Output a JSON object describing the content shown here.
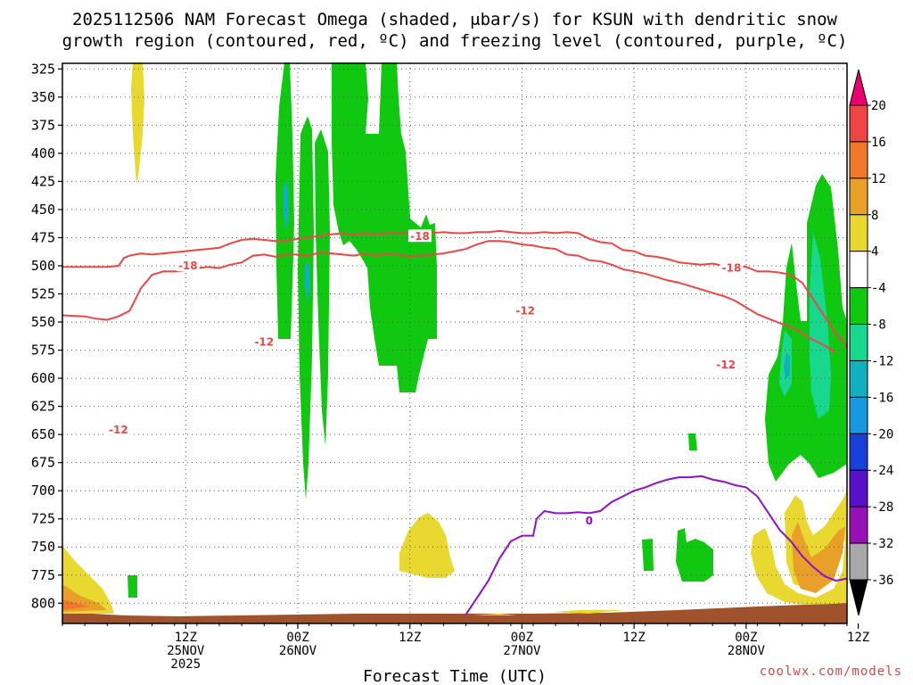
{
  "chart_data": {
    "type": "contour",
    "title_line1": "2025112506 NAM Forecast Omega (shaded, μbar/s) for KSUN with dendritic snow",
    "title_line2": "growth region (contoured, red, ºC) and freezing level (contoured, purple, ºC)",
    "xlabel": "Forecast Time (UTC)",
    "credit": "coolwx.com/models",
    "y_axis": {
      "ticks": [
        325,
        350,
        375,
        400,
        425,
        450,
        475,
        500,
        525,
        550,
        575,
        600,
        625,
        650,
        675,
        700,
        725,
        750,
        775,
        800
      ],
      "range": [
        320,
        818
      ],
      "inverted": true,
      "grid": true
    },
    "x_axis": {
      "range_hours": [
        -5,
        65
      ],
      "ticks": [
        {
          "hour": 6,
          "lines": [
            "12Z",
            "25NOV",
            "2025"
          ]
        },
        {
          "hour": 16,
          "lines": [
            "00Z",
            "26NOV"
          ]
        },
        {
          "hour": 26,
          "lines": [
            "12Z"
          ]
        },
        {
          "hour": 36,
          "lines": [
            "00Z",
            "27NOV"
          ]
        },
        {
          "hour": 46,
          "lines": [
            "12Z"
          ]
        },
        {
          "hour": 56,
          "lines": [
            "00Z",
            "28NOV"
          ]
        },
        {
          "hour": 66,
          "lines": [
            "12Z"
          ]
        }
      ],
      "grid": true
    },
    "colorbar": {
      "labels": [
        "20",
        "16",
        "12",
        "8",
        "4",
        "-4",
        "-8",
        "-12",
        "-16",
        "-20",
        "-24",
        "-28",
        "-32",
        "-36"
      ],
      "colors": [
        "#e8006e",
        "#f04545",
        "#f07828",
        "#e8a028",
        "#e8d830",
        "#ffffff",
        "#10c810",
        "#18d890",
        "#10b0c0",
        "#1898e0",
        "#1840d8",
        "#5810c8",
        "#9810b8",
        "#a8a8a8",
        "#000000"
      ]
    },
    "series": [
      {
        "name": "-18",
        "color": "#f04545",
        "points": [
          [
            -5,
            501
          ],
          [
            -3,
            501
          ],
          [
            -2,
            501
          ],
          [
            -1,
            501
          ],
          [
            0,
            500
          ],
          [
            0.5,
            493
          ],
          [
            1,
            491
          ],
          [
            2,
            489
          ],
          [
            3,
            490
          ],
          [
            4,
            489
          ],
          [
            5,
            488
          ],
          [
            6,
            487
          ],
          [
            7,
            486
          ],
          [
            8,
            485
          ],
          [
            9,
            484
          ],
          [
            10,
            480
          ],
          [
            11,
            477
          ],
          [
            12,
            476
          ],
          [
            13,
            477
          ],
          [
            14,
            478
          ],
          [
            15,
            478
          ],
          [
            16,
            476
          ],
          [
            17,
            475
          ],
          [
            18,
            473
          ],
          [
            19,
            472
          ],
          [
            20,
            471
          ],
          [
            21,
            472
          ],
          [
            22,
            471
          ],
          [
            23,
            472
          ],
          [
            24,
            471
          ],
          [
            25,
            471
          ],
          [
            26,
            471
          ],
          [
            27,
            470
          ],
          [
            28,
            471
          ],
          [
            29,
            470
          ],
          [
            30,
            471
          ],
          [
            31,
            471
          ],
          [
            32,
            470
          ],
          [
            33,
            470
          ],
          [
            34,
            469
          ],
          [
            35,
            470
          ],
          [
            36,
            471
          ],
          [
            37,
            471
          ],
          [
            38,
            470
          ],
          [
            39,
            471
          ],
          [
            40,
            470
          ],
          [
            41,
            471
          ],
          [
            42,
            476
          ],
          [
            43,
            479
          ],
          [
            44,
            480
          ],
          [
            45,
            486
          ],
          [
            46,
            487
          ],
          [
            47,
            491
          ],
          [
            48,
            492
          ],
          [
            49,
            494
          ],
          [
            50,
            497
          ],
          [
            51,
            498
          ],
          [
            52,
            499
          ],
          [
            53,
            498
          ],
          [
            54,
            500
          ],
          [
            55,
            500
          ],
          [
            56,
            501
          ],
          [
            57,
            505
          ],
          [
            58,
            505
          ],
          [
            59,
            506
          ],
          [
            60,
            508
          ],
          [
            61,
            515
          ],
          [
            62,
            530
          ],
          [
            63,
            545
          ],
          [
            64,
            560
          ],
          [
            65,
            572
          ]
        ]
      },
      {
        "name": "-12",
        "color": "#f04545",
        "points": [
          [
            -5,
            544
          ],
          [
            -3,
            545
          ],
          [
            -2,
            547
          ],
          [
            -1,
            548
          ],
          [
            0,
            545
          ],
          [
            1,
            540
          ],
          [
            2,
            520
          ],
          [
            3,
            508
          ],
          [
            4,
            505
          ],
          [
            5,
            505
          ],
          [
            6,
            504
          ],
          [
            7,
            502
          ],
          [
            8,
            501
          ],
          [
            9,
            502
          ],
          [
            10,
            499
          ],
          [
            11,
            497
          ],
          [
            12,
            491
          ],
          [
            13,
            490
          ],
          [
            14,
            492
          ],
          [
            15,
            490
          ],
          [
            16,
            490
          ],
          [
            17,
            491
          ],
          [
            18,
            488
          ],
          [
            19,
            489
          ],
          [
            20,
            490
          ],
          [
            21,
            491
          ],
          [
            22,
            489
          ],
          [
            23,
            491
          ],
          [
            24,
            489
          ],
          [
            25,
            490
          ],
          [
            26,
            492
          ],
          [
            27,
            491
          ],
          [
            28,
            490
          ],
          [
            29,
            489
          ],
          [
            30,
            487
          ],
          [
            31,
            485
          ],
          [
            32,
            481
          ],
          [
            33,
            478
          ],
          [
            34,
            478
          ],
          [
            35,
            479
          ],
          [
            36,
            481
          ],
          [
            37,
            482
          ],
          [
            38,
            484
          ],
          [
            39,
            485
          ],
          [
            40,
            490
          ],
          [
            41,
            491
          ],
          [
            42,
            495
          ],
          [
            43,
            496
          ],
          [
            44,
            499
          ],
          [
            45,
            503
          ],
          [
            46,
            505
          ],
          [
            47,
            507
          ],
          [
            48,
            510
          ],
          [
            49,
            513
          ],
          [
            50,
            515
          ],
          [
            51,
            518
          ],
          [
            52,
            521
          ],
          [
            53,
            524
          ],
          [
            54,
            527
          ],
          [
            55,
            531
          ],
          [
            56,
            537
          ],
          [
            57,
            543
          ],
          [
            58,
            547
          ],
          [
            59,
            551
          ],
          [
            60,
            554
          ],
          [
            61,
            560
          ],
          [
            62,
            566
          ],
          [
            63,
            571
          ],
          [
            64,
            577
          ]
        ]
      },
      {
        "name": "0",
        "color": "#9010c8",
        "points": [
          [
            31,
            810
          ],
          [
            33,
            780
          ],
          [
            34,
            760
          ],
          [
            35,
            745
          ],
          [
            36,
            740
          ],
          [
            37,
            740
          ],
          [
            37.3,
            725
          ],
          [
            38,
            718
          ],
          [
            39,
            720
          ],
          [
            40,
            720
          ],
          [
            41,
            719
          ],
          [
            42,
            720
          ],
          [
            43,
            718
          ],
          [
            44,
            710
          ],
          [
            45,
            705
          ],
          [
            46,
            700
          ],
          [
            47,
            697
          ],
          [
            48,
            693
          ],
          [
            49,
            690
          ],
          [
            50,
            688
          ],
          [
            51,
            688
          ],
          [
            52,
            687
          ],
          [
            53,
            690
          ],
          [
            54,
            692
          ],
          [
            55,
            695
          ],
          [
            56,
            697
          ],
          [
            57,
            705
          ],
          [
            58,
            720
          ],
          [
            59,
            735
          ],
          [
            60,
            745
          ],
          [
            61,
            758
          ],
          [
            62,
            768
          ],
          [
            63,
            776
          ],
          [
            64,
            780
          ],
          [
            65,
            778
          ]
        ]
      }
    ],
    "contour_labels": [
      {
        "text": "-18",
        "x_hour": 6.2,
        "y": 500,
        "color": "#f04545"
      },
      {
        "text": "-18",
        "x_hour": 26.9,
        "y": 474,
        "color": "#f04545"
      },
      {
        "text": "-18",
        "x_hour": 54.7,
        "y": 502,
        "color": "#f04545"
      },
      {
        "text": "-12",
        "x_hour": 0.0,
        "y": 646,
        "color": "#f04545"
      },
      {
        "text": "-12",
        "x_hour": 13.0,
        "y": 568,
        "color": "#f04545"
      },
      {
        "text": "-12",
        "x_hour": 36.3,
        "y": 540,
        "color": "#f04545"
      },
      {
        "text": "-12",
        "x_hour": 54.2,
        "y": 588,
        "color": "#f04545"
      },
      {
        "text": "0",
        "x_hour": 42.0,
        "y": 727,
        "color": "#9010c8"
      }
    ]
  }
}
